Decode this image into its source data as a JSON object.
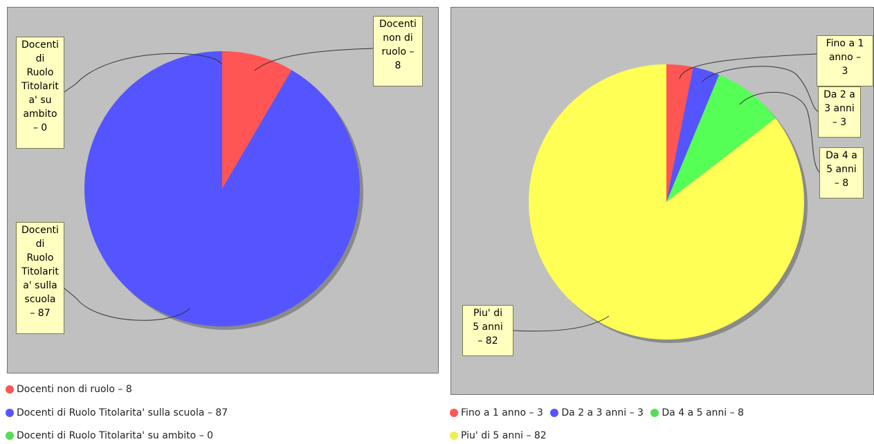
{
  "charts": [
    {
      "chart_data": {
        "type": "pie",
        "slices": [
          {
            "label": "Docenti non di ruolo",
            "value": 8,
            "color": "#ff5555"
          },
          {
            "label": "Docenti di Ruolo Titolarita' sulla scuola",
            "value": 87,
            "color": "#5555ff"
          },
          {
            "label": "Docenti di Ruolo Titolarita' su ambito",
            "value": 0,
            "color": "#55ff55"
          }
        ]
      },
      "section_labels": [
        "Docenti\nnon di\nruolo –\n8",
        "Docenti\ndi\nRuolo\nTitolarit\na' sulla\nscuola\n– 87",
        "Docenti\ndi\nRuolo\nTitolarit\na' su\nambito\n– 0"
      ],
      "legend": [
        "Docenti non di ruolo – 8",
        "Docenti di Ruolo Titolarita' sulla scuola – 87",
        "Docenti di Ruolo Titolarita' su ambito – 0"
      ],
      "legend_colors": [
        "#ff5555",
        "#5555ff",
        "#55dd55"
      ]
    },
    {
      "chart_data": {
        "type": "pie",
        "slices": [
          {
            "label": "Fino a 1 anno",
            "value": 3,
            "color": "#ff5555"
          },
          {
            "label": "Da 2 a 3 anni",
            "value": 3,
            "color": "#5555ff"
          },
          {
            "label": "Da 4 a 5 anni",
            "value": 8,
            "color": "#55ff55"
          },
          {
            "label": "Piu' di 5 anni",
            "value": 82,
            "color": "#ffff55"
          }
        ]
      },
      "section_labels": [
        "Fino a 1\nanno –\n3",
        "Da 2 a\n3 anni\n– 3",
        "Da 4 a\n5 anni\n– 8",
        "Piu' di\n5 anni\n– 82"
      ],
      "legend": [
        "Fino a 1 anno – 3",
        "Da 2 a 3 anni – 3",
        "Da 4 a 5 anni – 8",
        "Piu' di 5 anni – 82"
      ],
      "legend_colors": [
        "#ff5555",
        "#5555ff",
        "#55dd55",
        "#eeee55"
      ]
    }
  ]
}
